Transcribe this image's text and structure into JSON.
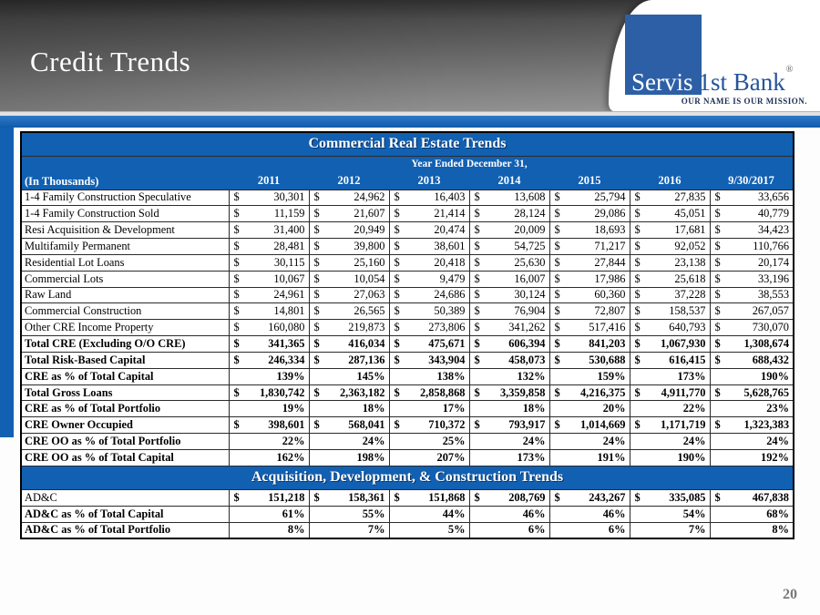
{
  "slide": {
    "title": "Credit Trends",
    "page_number": "20",
    "logo": {
      "servis": "Servis",
      "bank": "1st Bank",
      "registered": "®",
      "tagline": "OUR NAME IS OUR MISSION."
    },
    "colors": {
      "accent_blue": "#1160b2",
      "logo_blue": "#2d5fa6",
      "tagline_navy": "#1c2c55"
    }
  },
  "table": {
    "title": "Commercial Real Estate Trends",
    "units_label": "(In Thousands)",
    "group_header": "Year Ended December 31,",
    "currency_symbol": "$",
    "columns": [
      "2011",
      "2012",
      "2013",
      "2014",
      "2015",
      "2016",
      "9/30/2017"
    ],
    "rows": [
      {
        "label": "1-4 Family Construction Speculative",
        "style": "normal",
        "format": "dollar",
        "values": [
          "30,301",
          "24,962",
          "16,403",
          "13,608",
          "25,794",
          "27,835",
          "33,656"
        ]
      },
      {
        "label": "1-4 Family Construction Sold",
        "style": "normal",
        "format": "dollar",
        "values": [
          "11,159",
          "21,607",
          "21,414",
          "28,124",
          "29,086",
          "45,051",
          "40,779"
        ]
      },
      {
        "label": "Resi Acquisition & Development",
        "style": "normal",
        "format": "dollar",
        "values": [
          "31,400",
          "20,949",
          "20,474",
          "20,009",
          "18,693",
          "17,681",
          "34,423"
        ]
      },
      {
        "label": "Multifamily Permanent",
        "style": "normal",
        "format": "dollar",
        "values": [
          "28,481",
          "39,800",
          "38,601",
          "54,725",
          "71,217",
          "92,052",
          "110,766"
        ]
      },
      {
        "label": "Residential Lot Loans",
        "style": "normal",
        "format": "dollar",
        "values": [
          "30,115",
          "25,160",
          "20,418",
          "25,630",
          "27,844",
          "23,138",
          "20,174"
        ]
      },
      {
        "label": "Commercial Lots",
        "style": "normal",
        "format": "dollar",
        "values": [
          "10,067",
          "10,054",
          "9,479",
          "16,007",
          "17,986",
          "25,618",
          "33,196"
        ]
      },
      {
        "label": "Raw Land",
        "style": "normal",
        "format": "dollar",
        "values": [
          "24,961",
          "27,063",
          "24,686",
          "30,124",
          "60,360",
          "37,228",
          "38,553"
        ]
      },
      {
        "label": "Commercial Construction",
        "style": "normal",
        "format": "dollar",
        "values": [
          "14,801",
          "26,565",
          "50,389",
          "76,904",
          "72,807",
          "158,537",
          "267,057"
        ]
      },
      {
        "label": "Other CRE Income Property",
        "style": "normal",
        "format": "dollar",
        "values": [
          "160,080",
          "219,873",
          "273,806",
          "341,262",
          "517,416",
          "640,793",
          "730,070"
        ]
      },
      {
        "label": "Total CRE (Excluding O/O CRE)",
        "style": "bold",
        "format": "dollar",
        "values": [
          "341,365",
          "416,034",
          "475,671",
          "606,394",
          "841,203",
          "1,067,930",
          "1,308,674"
        ]
      },
      {
        "label": "Total Risk-Based Capital",
        "style": "bold",
        "format": "dollar",
        "values": [
          "246,334",
          "287,136",
          "343,904",
          "458,073",
          "530,688",
          "616,415",
          "688,432"
        ]
      },
      {
        "label": "CRE as % of Total Capital",
        "style": "bold",
        "format": "percent",
        "values": [
          "139%",
          "145%",
          "138%",
          "132%",
          "159%",
          "173%",
          "190%"
        ]
      },
      {
        "label": "Total Gross Loans",
        "style": "bold",
        "format": "dollar",
        "values": [
          "1,830,742",
          "2,363,182",
          "2,858,868",
          "3,359,858",
          "4,216,375",
          "4,911,770",
          "5,628,765"
        ]
      },
      {
        "label": "CRE as % of Total Portfolio",
        "style": "bold",
        "format": "percent",
        "values": [
          "19%",
          "18%",
          "17%",
          "18%",
          "20%",
          "22%",
          "23%"
        ]
      },
      {
        "label": "CRE Owner Occupied",
        "style": "bold",
        "format": "dollar",
        "values": [
          "398,601",
          "568,041",
          "710,372",
          "793,917",
          "1,014,669",
          "1,171,719",
          "1,323,383"
        ]
      },
      {
        "label": "CRE OO as % of Total Portfolio",
        "style": "bold",
        "format": "percent",
        "values": [
          "22%",
          "24%",
          "25%",
          "24%",
          "24%",
          "24%",
          "24%"
        ]
      },
      {
        "label": "CRE OO as % of Total Capital",
        "style": "bold",
        "format": "percent",
        "values": [
          "162%",
          "198%",
          "207%",
          "173%",
          "191%",
          "190%",
          "192%"
        ]
      }
    ],
    "adc_title": "Acquisition, Development, & Construction Trends",
    "adc_rows": [
      {
        "label": "AD&C",
        "style": "mixed",
        "format": "dollar",
        "values": [
          "151,218",
          "158,361",
          "151,868",
          "208,769",
          "243,267",
          "335,085",
          "467,838"
        ]
      },
      {
        "label": "AD&C as % of Total Capital",
        "style": "bold",
        "format": "percent",
        "values": [
          "61%",
          "55%",
          "44%",
          "46%",
          "46%",
          "54%",
          "68%"
        ]
      },
      {
        "label": "AD&C as % of Total Portfolio",
        "style": "bold",
        "format": "percent",
        "values": [
          "8%",
          "7%",
          "5%",
          "6%",
          "6%",
          "7%",
          "8%"
        ]
      }
    ]
  }
}
